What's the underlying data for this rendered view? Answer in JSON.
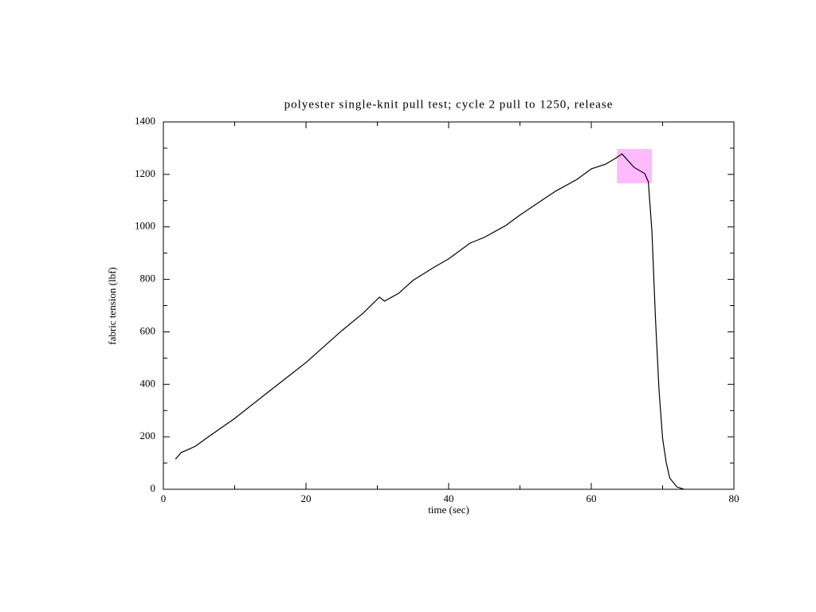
{
  "chart_data": {
    "type": "line",
    "title": "polyester single-knit pull test; cycle 2 pull to 1250, release",
    "x_label": "time (sec)",
    "y_label": "fabric tension (lbf)",
    "xlim": [
      0,
      80
    ],
    "ylim": [
      0,
      1400
    ],
    "xticks": [
      0,
      20,
      40,
      60,
      80
    ],
    "yticks": [
      0,
      200,
      400,
      600,
      800,
      1000,
      1200,
      1400
    ],
    "xminor_ticks": [
      10,
      30,
      50,
      70
    ],
    "yminor_ticks": [
      100,
      300,
      500,
      700,
      900,
      1100,
      1300
    ],
    "highlight": {
      "x": [
        63.6,
        68.5
      ],
      "y": [
        1166,
        1297
      ],
      "color": "#ffbbff"
    },
    "series": [
      {
        "color": "#000000",
        "x": [
          1.7,
          2.5,
          4.5,
          6,
          10,
          15,
          20,
          25,
          28,
          30.3,
          31,
          33,
          35,
          38,
          40,
          43,
          45,
          48,
          50,
          53,
          55,
          58,
          60,
          62,
          63.5,
          64.3,
          65,
          66,
          67.5,
          68,
          68.5,
          69,
          69.5,
          70,
          70.5,
          71,
          72,
          73
        ],
        "values": [
          115,
          140,
          164,
          194,
          270,
          377,
          483,
          604,
          671,
          732,
          717,
          747,
          796,
          847,
          878,
          938,
          960,
          1005,
          1045,
          1100,
          1136,
          1181,
          1221,
          1239,
          1263,
          1278,
          1257,
          1227,
          1203,
          1172,
          984,
          650,
          377,
          194,
          103,
          43,
          9,
          0
        ]
      }
    ]
  }
}
